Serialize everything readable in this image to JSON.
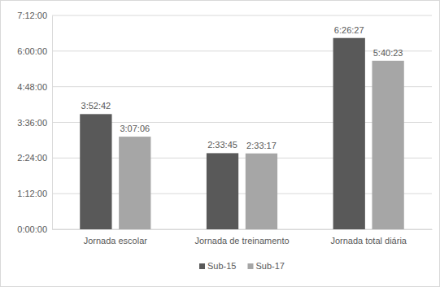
{
  "chart_data": {
    "type": "bar",
    "categories": [
      "Jornada escolar",
      "Jornada de treinamento",
      "Jornada total diária"
    ],
    "series": [
      {
        "name": "Sub-15",
        "color": "#595959",
        "values": [
          13962,
          9225,
          23187
        ],
        "value_labels": [
          "3:52:42",
          "2:33:45",
          "6:26:27"
        ]
      },
      {
        "name": "Sub-17",
        "color": "#a6a6a6",
        "values": [
          11226,
          9197,
          20423
        ],
        "value_labels": [
          "3:07:06",
          "2:33:17",
          "5:40:23"
        ]
      }
    ],
    "ylim": [
      0,
      25920
    ],
    "yticks": [
      {
        "value": 0,
        "label": "0:00:00"
      },
      {
        "value": 4320,
        "label": "1:12:00"
      },
      {
        "value": 8640,
        "label": "2:24:00"
      },
      {
        "value": 12960,
        "label": "3:36:00"
      },
      {
        "value": 17280,
        "label": "4:48:00"
      },
      {
        "value": 21600,
        "label": "6:00:00"
      },
      {
        "value": 25920,
        "label": "7:12:00"
      }
    ],
    "grid": true,
    "data_labels": true,
    "legend": "bottom"
  }
}
